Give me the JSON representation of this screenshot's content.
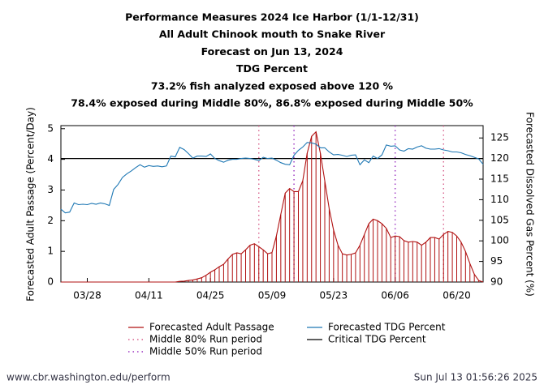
{
  "chart_data": {
    "type": "line",
    "title": [
      "Performance Measures 2024 Ice Harbor (1/1-12/31)",
      "All Adult Chinook mouth to Snake River",
      "Forecast on Jun 13, 2024",
      "TDG Percent",
      "73.2% fish analyzed exposed above 120 %",
      "78.4% exposed during Middle 80%, 86.8% exposed during Middle 50%"
    ],
    "ylabel": "Forecasted Adult Passage (Percent/Day)",
    "y2label": "Forecasted Dissolved Gas Percent (%)",
    "x": [
      "03/22",
      "03/23",
      "03/24",
      "03/25",
      "03/26",
      "03/27",
      "03/28",
      "03/29",
      "03/30",
      "03/31",
      "04/01",
      "04/02",
      "04/03",
      "04/04",
      "04/05",
      "04/06",
      "04/07",
      "04/08",
      "04/09",
      "04/10",
      "04/11",
      "04/12",
      "04/13",
      "04/14",
      "04/15",
      "04/16",
      "04/17",
      "04/18",
      "04/19",
      "04/20",
      "04/21",
      "04/22",
      "04/23",
      "04/24",
      "04/25",
      "04/26",
      "04/27",
      "04/28",
      "04/29",
      "04/30",
      "05/01",
      "05/02",
      "05/03",
      "05/04",
      "05/05",
      "05/06",
      "05/07",
      "05/08",
      "05/09",
      "05/10",
      "05/11",
      "05/12",
      "05/13",
      "05/14",
      "05/15",
      "05/16",
      "05/17",
      "05/18",
      "05/19",
      "05/20",
      "05/21",
      "05/22",
      "05/23",
      "05/24",
      "05/25",
      "05/26",
      "05/27",
      "05/28",
      "05/29",
      "05/30",
      "05/31",
      "06/01",
      "06/02",
      "06/03",
      "06/04",
      "06/05",
      "06/06",
      "06/07",
      "06/08",
      "06/09",
      "06/10",
      "06/11",
      "06/12",
      "06/13",
      "06/14",
      "06/15",
      "06/16",
      "06/17",
      "06/18",
      "06/19",
      "06/20",
      "06/21",
      "06/22",
      "06/23",
      "06/24",
      "06/25",
      "06/26"
    ],
    "xlim": [
      "03/22",
      "06/26"
    ],
    "xticks": [
      "03/28",
      "04/11",
      "04/25",
      "05/09",
      "05/23",
      "06/06",
      "06/20"
    ],
    "ylim": [
      0,
      5.1
    ],
    "yticks": [
      0,
      1,
      2,
      3,
      4,
      5
    ],
    "y2lim": [
      90,
      128
    ],
    "y2ticks": [
      90,
      95,
      100,
      105,
      110,
      115,
      120,
      125
    ],
    "series": [
      {
        "name": "Forecasted Adult Passage",
        "color": "#b01010",
        "bars": true,
        "values": [
          0,
          0,
          0,
          0,
          0,
          0,
          0,
          0,
          0,
          0,
          0,
          0,
          0,
          0,
          0,
          0,
          0,
          0,
          0,
          0,
          0,
          0,
          0,
          0,
          0,
          0,
          0,
          0.02,
          0.03,
          0.05,
          0.07,
          0.1,
          0.14,
          0.22,
          0.32,
          0.4,
          0.5,
          0.58,
          0.75,
          0.9,
          0.95,
          0.92,
          1.05,
          1.2,
          1.25,
          1.15,
          1.05,
          0.92,
          0.96,
          1.5,
          2.2,
          2.9,
          3.05,
          2.95,
          2.95,
          3.3,
          4.2,
          4.75,
          4.9,
          4.2,
          3.3,
          2.4,
          1.7,
          1.2,
          0.92,
          0.88,
          0.9,
          0.95,
          1.2,
          1.55,
          1.9,
          2.05,
          2.0,
          1.9,
          1.75,
          1.45,
          1.5,
          1.48,
          1.35,
          1.3,
          1.32,
          1.3,
          1.2,
          1.3,
          1.45,
          1.45,
          1.4,
          1.55,
          1.65,
          1.62,
          1.5,
          1.3,
          1.0,
          0.6,
          0.25,
          0.05,
          0
        ]
      },
      {
        "name": "Forecasted TDG Percent",
        "color": "#1f78b4",
        "axis": "y2",
        "values": [
          107.7,
          106.8,
          107.0,
          109.2,
          108.8,
          108.9,
          108.8,
          109.1,
          108.9,
          109.2,
          109.0,
          108.6,
          112.5,
          113.7,
          115.4,
          116.3,
          117.0,
          117.8,
          118.5,
          117.9,
          118.3,
          118.1,
          118.2,
          118.0,
          118.2,
          120.6,
          120.4,
          122.7,
          122.2,
          121.2,
          120.1,
          120.6,
          120.6,
          120.5,
          121.1,
          120.0,
          119.5,
          119.1,
          119.6,
          119.8,
          119.8,
          120.0,
          120.1,
          120.0,
          119.8,
          119.5,
          120.3,
          120.0,
          120.1,
          119.6,
          119.0,
          118.6,
          118.5,
          120.8,
          122.0,
          122.8,
          123.9,
          123.8,
          123.5,
          122.6,
          122.6,
          121.6,
          120.9,
          121.0,
          120.8,
          120.5,
          120.8,
          120.9,
          118.5,
          119.7,
          119.0,
          120.6,
          120.0,
          120.9,
          123.3,
          123.0,
          123.1,
          122.1,
          121.8,
          122.4,
          122.3,
          122.8,
          123.1,
          122.5,
          122.3,
          122.3,
          122.4,
          122.1,
          121.9,
          121.6,
          121.6,
          121.4,
          121.0,
          120.7,
          120.3,
          119.9,
          118.6
        ]
      }
    ],
    "reference_lines": [
      {
        "name": "Critical TDG Percent",
        "value": 120,
        "axis": "y2",
        "color": "#000000"
      }
    ],
    "periods": [
      {
        "name": "Middle 80% Run period",
        "color": "#d8608c",
        "dates": [
          "05/06",
          "06/17"
        ]
      },
      {
        "name": "Middle 50% Run period",
        "color": "#9a30c0",
        "dates": [
          "05/14",
          "06/06"
        ]
      }
    ]
  },
  "footer": {
    "left": "www.cbr.washington.edu/perform",
    "right": "Sun Jul 13 01:56:26 2025"
  }
}
